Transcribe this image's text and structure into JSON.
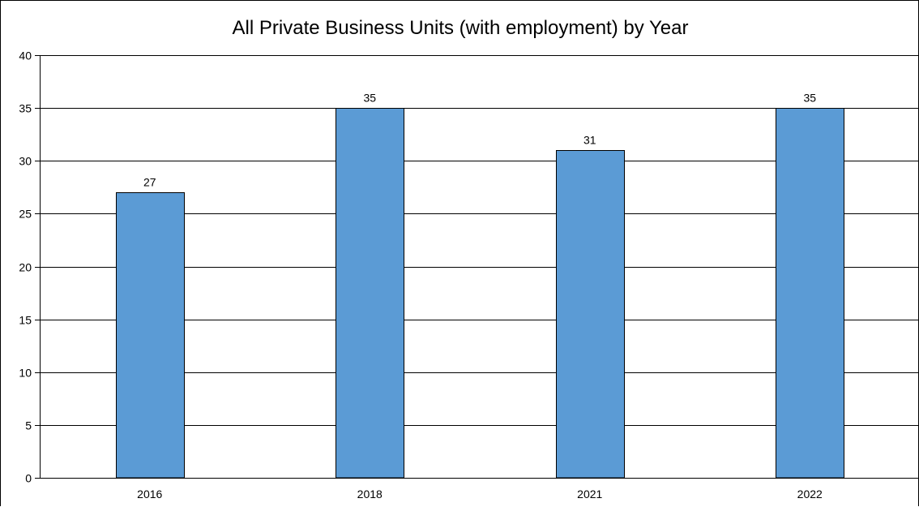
{
  "chart_data": {
    "type": "bar",
    "title": "All Private Business Units (with employment) by Year",
    "xlabel": "",
    "ylabel": "",
    "categories": [
      "2016",
      "2018",
      "2021",
      "2022"
    ],
    "values": [
      27,
      35,
      31,
      35
    ],
    "data_labels": [
      "27",
      "35",
      "31",
      "35"
    ],
    "ylim": [
      0,
      40
    ],
    "y_ticks": [
      "0",
      "5",
      "10",
      "15",
      "20",
      "25",
      "30",
      "35",
      "40"
    ],
    "y_tick_values": [
      0,
      5,
      10,
      15,
      20,
      25,
      30,
      35,
      40
    ],
    "grid": true,
    "legend": "none",
    "bar_color": "#5B9BD5",
    "bar_edge_color": "#000000",
    "grid_color": "#000000"
  }
}
